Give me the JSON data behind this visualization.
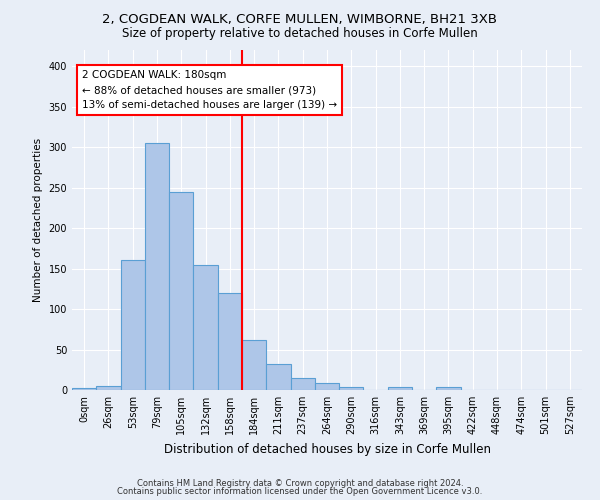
{
  "title1": "2, COGDEAN WALK, CORFE MULLEN, WIMBORNE, BH21 3XB",
  "title2": "Size of property relative to detached houses in Corfe Mullen",
  "xlabel": "Distribution of detached houses by size in Corfe Mullen",
  "ylabel": "Number of detached properties",
  "footer1": "Contains HM Land Registry data © Crown copyright and database right 2024.",
  "footer2": "Contains public sector information licensed under the Open Government Licence v3.0.",
  "bin_labels": [
    "0sqm",
    "26sqm",
    "53sqm",
    "79sqm",
    "105sqm",
    "132sqm",
    "158sqm",
    "184sqm",
    "211sqm",
    "237sqm",
    "264sqm",
    "290sqm",
    "316sqm",
    "343sqm",
    "369sqm",
    "395sqm",
    "422sqm",
    "448sqm",
    "474sqm",
    "501sqm",
    "527sqm"
  ],
  "bar_heights": [
    3,
    5,
    160,
    305,
    245,
    155,
    120,
    62,
    32,
    15,
    9,
    4,
    0,
    4,
    0,
    4,
    0,
    0,
    0,
    0,
    0
  ],
  "bar_color": "#aec6e8",
  "bar_edge_color": "#5a9fd4",
  "property_line_x": 7,
  "annotation_text": "2 COGDEAN WALK: 180sqm\n← 88% of detached houses are smaller (973)\n13% of semi-detached houses are larger (139) →",
  "annotation_box_color": "white",
  "annotation_box_edge_color": "red",
  "vline_color": "red",
  "ylim": [
    0,
    420
  ],
  "yticks": [
    0,
    50,
    100,
    150,
    200,
    250,
    300,
    350,
    400
  ],
  "background_color": "#e8eef7",
  "grid_color": "white",
  "title1_fontsize": 9.5,
  "title2_fontsize": 8.5,
  "xlabel_fontsize": 8.5,
  "ylabel_fontsize": 7.5,
  "tick_fontsize": 7,
  "footer_fontsize": 6,
  "annotation_fontsize": 7.5
}
